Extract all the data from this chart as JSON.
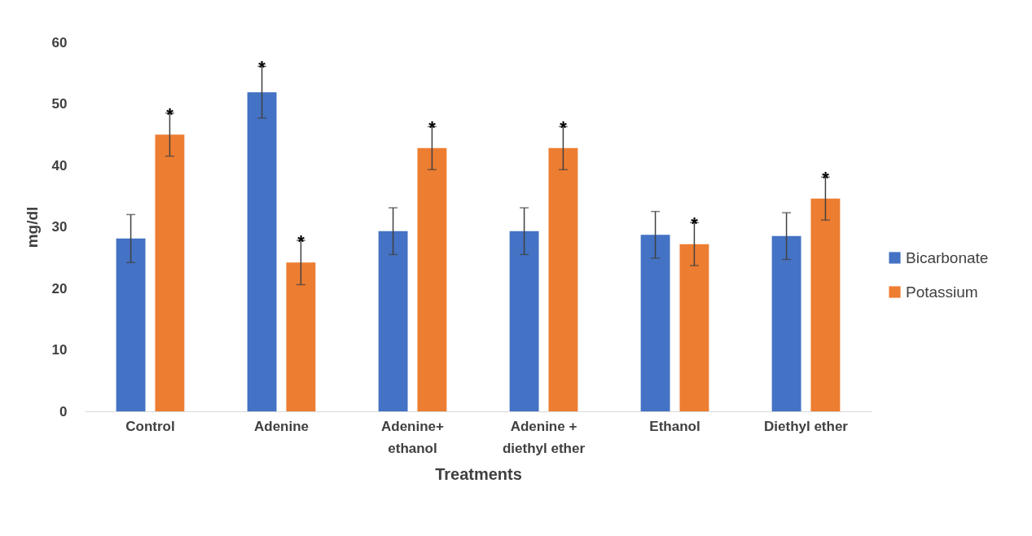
{
  "chart_data": {
    "type": "bar",
    "xlabel": "Treatments",
    "ylabel": "mg/dl",
    "categories": [
      "Control",
      "Adenine",
      "Adenine+ ethanol",
      "Adenine + diethyl ether",
      "Ethanol",
      "Diethyl ether"
    ],
    "series": [
      {
        "name": "Bicarbonate",
        "color": "#4472c4",
        "values": [
          28.1,
          51.9,
          29.3,
          29.3,
          28.7,
          28.5
        ],
        "errors": [
          3.9,
          4.2,
          3.8,
          3.8,
          3.8,
          3.8
        ],
        "value_labels": [
          null,
          "*",
          null,
          null,
          null,
          null
        ]
      },
      {
        "name": "Potassium",
        "color": "#ed7d31",
        "values": [
          45.0,
          24.2,
          42.8,
          42.8,
          27.2,
          34.6
        ],
        "errors": [
          3.5,
          3.6,
          3.5,
          3.5,
          3.5,
          3.5
        ],
        "value_labels": [
          "*",
          "*",
          "*",
          "*",
          "*",
          "*"
        ]
      }
    ],
    "ylim": [
      0,
      60
    ],
    "yticks": [
      0,
      10,
      20,
      30,
      40,
      50,
      60
    ],
    "grid": false,
    "legend": "right"
  }
}
